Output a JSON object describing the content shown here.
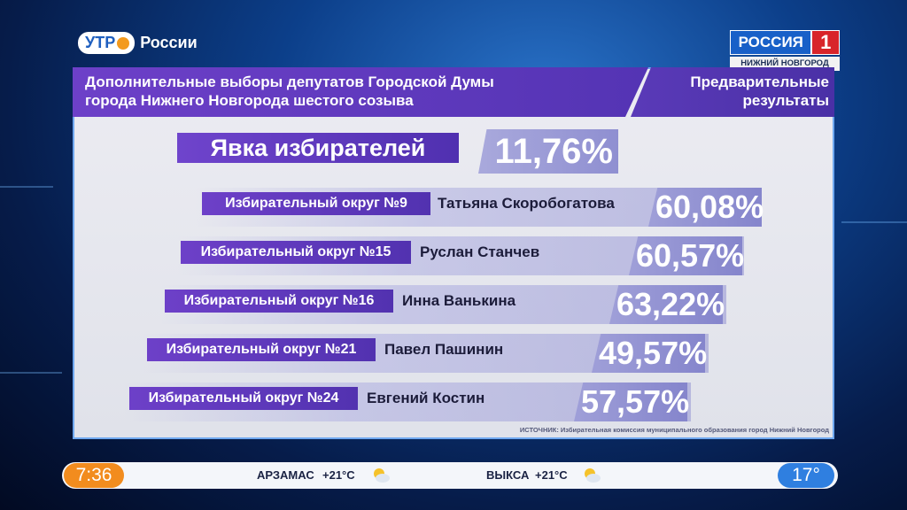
{
  "branding": {
    "show_logo": "УТР",
    "show_logo_suffix": "России",
    "channel_name": "РОССИЯ",
    "channel_number": "1",
    "channel_city": "НИЖНИЙ НОВГОРОД"
  },
  "header": {
    "title_line1": "Дополнительные выборы депутатов Городской Думы",
    "title_line2": "города Нижнего Новгорода шестого созыва",
    "status_line1": "Предварительные",
    "status_line2": "результаты"
  },
  "turnout": {
    "label": "Явка избирателей",
    "value": "11,76%"
  },
  "districts": [
    {
      "label": "Избирательный округ №9",
      "candidate": "Татьяна Скоробогатова",
      "percent": "60,08%"
    },
    {
      "label": "Избирательный округ №15",
      "candidate": "Руслан Станчев",
      "percent": "60,57%"
    },
    {
      "label": "Избирательный округ №16",
      "candidate": "Инна Ванькина",
      "percent": "63,22%"
    },
    {
      "label": "Избирательный округ №21",
      "candidate": "Павел Пашинин",
      "percent": "49,57%"
    },
    {
      "label": "Избирательный округ №24",
      "candidate": "Евгений Костин",
      "percent": "57,57%"
    }
  ],
  "source": "ИСТОЧНИК: Избирательная комиссия муниципального образования город Нижний Новгород",
  "ticker": {
    "time": "7:36",
    "weather": [
      {
        "city": "АРЗАМАС",
        "temp": "+21°C",
        "icon": "sun-cloud-icon"
      },
      {
        "city": "ВЫКСА",
        "temp": "+21°C",
        "icon": "sun-cloud-icon"
      }
    ],
    "current_temp": "17°"
  },
  "colors": {
    "accent_purple": "#6d40c8",
    "percent_box": "#9494d4",
    "time_orange": "#f28c1e",
    "temp_blue": "#2f7fe0"
  }
}
